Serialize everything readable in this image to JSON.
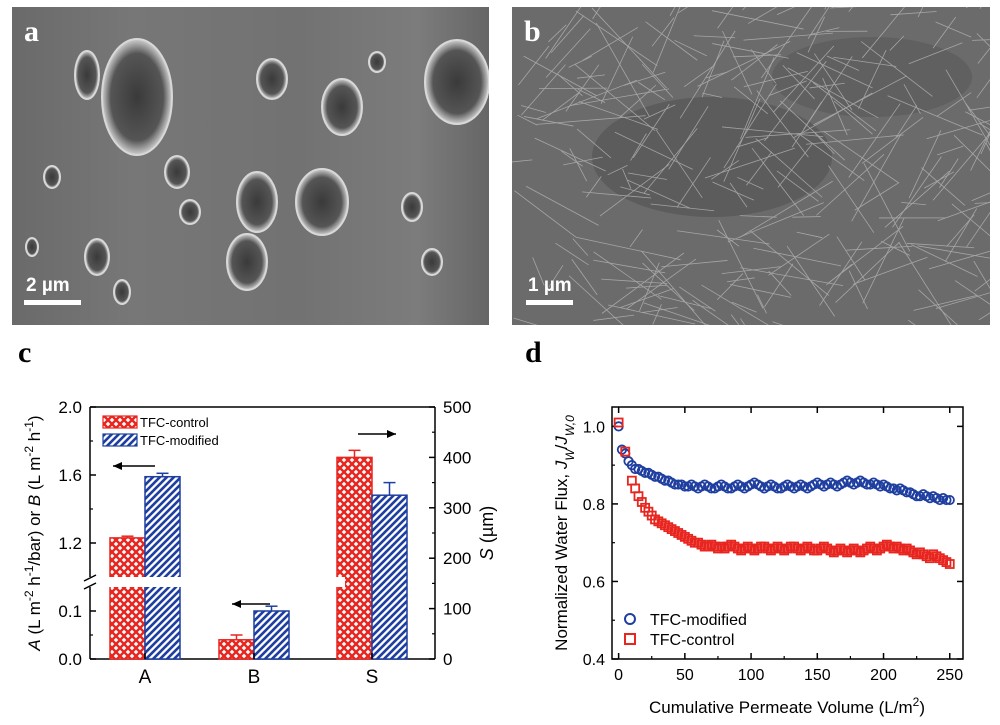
{
  "panel_labels": {
    "a": "a",
    "b": "b",
    "c": "c",
    "d": "d"
  },
  "sem_a": {
    "scale_label": "2 µm"
  },
  "sem_b": {
    "scale_label": "1 µm"
  },
  "chart_data": [
    {
      "type": "bar",
      "panel": "c",
      "categories": [
        "A",
        "B",
        "S"
      ],
      "series": [
        {
          "name": "TFC-control",
          "color": "#e8251f",
          "pattern": "crosshatch",
          "values": [
            1.23,
            0.04,
            400
          ],
          "errors": [
            0.01,
            0.01,
            14
          ]
        },
        {
          "name": "TFC-modified",
          "color": "#1f3fa0",
          "pattern": "diagonal",
          "values": [
            1.59,
            0.1,
            325
          ],
          "errors": [
            0.02,
            0.01,
            25
          ]
        }
      ],
      "left_axis": {
        "label_parts": [
          "A",
          " (L m",
          "-2",
          " h",
          "-1",
          "/bar) or ",
          "B",
          " (L m",
          "-2",
          " h",
          "-1",
          ")"
        ],
        "lower_range": [
          0.0,
          0.15
        ],
        "lower_ticks": [
          "0.0",
          "0.1"
        ],
        "upper_range": [
          1.0,
          2.0
        ],
        "upper_ticks": [
          "1.2",
          "1.6",
          "2.0"
        ],
        "break": true
      },
      "right_axis": {
        "label_parts": [
          "S",
          " (µm)"
        ],
        "range": [
          0,
          500
        ],
        "ticks": [
          "0",
          "100",
          "200",
          "300",
          "400",
          "500"
        ]
      },
      "annotations": [
        "arrow-left over A",
        "arrow-left over B",
        "arrow-right over S"
      ],
      "legend": "top-left"
    },
    {
      "type": "scatter",
      "panel": "d",
      "xlabel_parts": [
        "Cumulative Permeate Volume (L/m",
        "2",
        ")"
      ],
      "ylabel_parts": [
        "Normalized Water Flux, ",
        "J",
        "W",
        "/",
        "J",
        "W,0"
      ],
      "xlim": [
        -5,
        260
      ],
      "ylim": [
        0.4,
        1.05
      ],
      "xticks": [
        "0",
        "50",
        "100",
        "150",
        "200",
        "250"
      ],
      "yticks": [
        "0.4",
        "0.6",
        "0.8",
        "1.0"
      ],
      "legend": "bottom-left",
      "series": [
        {
          "name": "TFC-modified",
          "marker": "circle",
          "color": "#1f3fa0",
          "x": [
            0,
            2.5,
            5,
            7.5,
            10,
            12.5,
            15,
            17.5,
            20,
            22.5,
            25,
            27.5,
            30,
            32.5,
            35,
            37.5,
            40,
            42.5,
            45,
            47.5,
            50,
            52.5,
            55,
            57.5,
            60,
            62.5,
            65,
            67.5,
            70,
            72.5,
            75,
            77.5,
            80,
            82.5,
            85,
            87.5,
            90,
            92.5,
            95,
            97.5,
            100,
            102.5,
            105,
            107.5,
            110,
            112.5,
            115,
            117.5,
            120,
            122.5,
            125,
            127.5,
            130,
            132.5,
            135,
            137.5,
            140,
            142.5,
            145,
            147.5,
            150,
            152.5,
            155,
            157.5,
            160,
            162.5,
            165,
            167.5,
            170,
            172.5,
            175,
            177.5,
            180,
            182.5,
            185,
            187.5,
            190,
            192.5,
            195,
            197.5,
            200,
            202.5,
            205,
            207.5,
            210,
            212.5,
            215,
            217.5,
            220,
            222.5,
            225,
            227.5,
            230,
            232.5,
            235,
            237.5,
            240,
            242.5,
            245,
            247.5,
            250
          ],
          "y": [
            1.0,
            0.94,
            0.93,
            0.91,
            0.9,
            0.89,
            0.89,
            0.885,
            0.88,
            0.88,
            0.875,
            0.87,
            0.87,
            0.865,
            0.86,
            0.86,
            0.855,
            0.85,
            0.85,
            0.85,
            0.845,
            0.845,
            0.85,
            0.845,
            0.84,
            0.845,
            0.85,
            0.845,
            0.84,
            0.84,
            0.845,
            0.85,
            0.845,
            0.84,
            0.84,
            0.845,
            0.85,
            0.845,
            0.84,
            0.845,
            0.85,
            0.855,
            0.85,
            0.845,
            0.84,
            0.845,
            0.85,
            0.845,
            0.84,
            0.84,
            0.845,
            0.85,
            0.845,
            0.84,
            0.845,
            0.85,
            0.845,
            0.84,
            0.845,
            0.85,
            0.855,
            0.85,
            0.845,
            0.85,
            0.855,
            0.85,
            0.845,
            0.85,
            0.855,
            0.86,
            0.855,
            0.85,
            0.855,
            0.86,
            0.855,
            0.85,
            0.85,
            0.855,
            0.85,
            0.845,
            0.85,
            0.845,
            0.84,
            0.84,
            0.835,
            0.84,
            0.835,
            0.83,
            0.83,
            0.825,
            0.82,
            0.82,
            0.825,
            0.82,
            0.815,
            0.82,
            0.815,
            0.81,
            0.815,
            0.81,
            0.81
          ]
        },
        {
          "name": "TFC-control",
          "marker": "square",
          "color": "#e8251f",
          "x": [
            0,
            5,
            10,
            12.5,
            15,
            17.5,
            20,
            22.5,
            25,
            27.5,
            30,
            32.5,
            35,
            37.5,
            40,
            42.5,
            45,
            47.5,
            50,
            52.5,
            55,
            57.5,
            60,
            62.5,
            65,
            67.5,
            70,
            72.5,
            75,
            77.5,
            80,
            82.5,
            85,
            87.5,
            90,
            92.5,
            95,
            97.5,
            100,
            102.5,
            105,
            107.5,
            110,
            112.5,
            115,
            117.5,
            120,
            122.5,
            125,
            127.5,
            130,
            132.5,
            135,
            137.5,
            140,
            142.5,
            145,
            147.5,
            150,
            152.5,
            155,
            157.5,
            160,
            162.5,
            165,
            167.5,
            170,
            172.5,
            175,
            177.5,
            180,
            182.5,
            185,
            187.5,
            190,
            192.5,
            195,
            197.5,
            200,
            202.5,
            205,
            207.5,
            210,
            212.5,
            215,
            217.5,
            220,
            222.5,
            225,
            227.5,
            230,
            232.5,
            235,
            237.5,
            240,
            242.5,
            245,
            247.5,
            250
          ],
          "y": [
            1.01,
            0.935,
            0.86,
            0.84,
            0.82,
            0.805,
            0.79,
            0.78,
            0.77,
            0.76,
            0.755,
            0.75,
            0.745,
            0.74,
            0.735,
            0.73,
            0.725,
            0.72,
            0.715,
            0.71,
            0.705,
            0.7,
            0.7,
            0.695,
            0.69,
            0.69,
            0.695,
            0.69,
            0.685,
            0.69,
            0.685,
            0.69,
            0.695,
            0.69,
            0.685,
            0.68,
            0.685,
            0.69,
            0.685,
            0.68,
            0.685,
            0.69,
            0.69,
            0.685,
            0.68,
            0.685,
            0.69,
            0.685,
            0.68,
            0.685,
            0.69,
            0.69,
            0.685,
            0.68,
            0.685,
            0.69,
            0.685,
            0.68,
            0.68,
            0.685,
            0.69,
            0.685,
            0.68,
            0.675,
            0.68,
            0.685,
            0.68,
            0.675,
            0.68,
            0.685,
            0.68,
            0.675,
            0.68,
            0.685,
            0.69,
            0.685,
            0.68,
            0.685,
            0.69,
            0.695,
            0.69,
            0.685,
            0.69,
            0.685,
            0.68,
            0.685,
            0.68,
            0.675,
            0.67,
            0.675,
            0.67,
            0.665,
            0.66,
            0.67,
            0.665,
            0.66,
            0.655,
            0.65,
            0.645
          ]
        }
      ]
    }
  ]
}
